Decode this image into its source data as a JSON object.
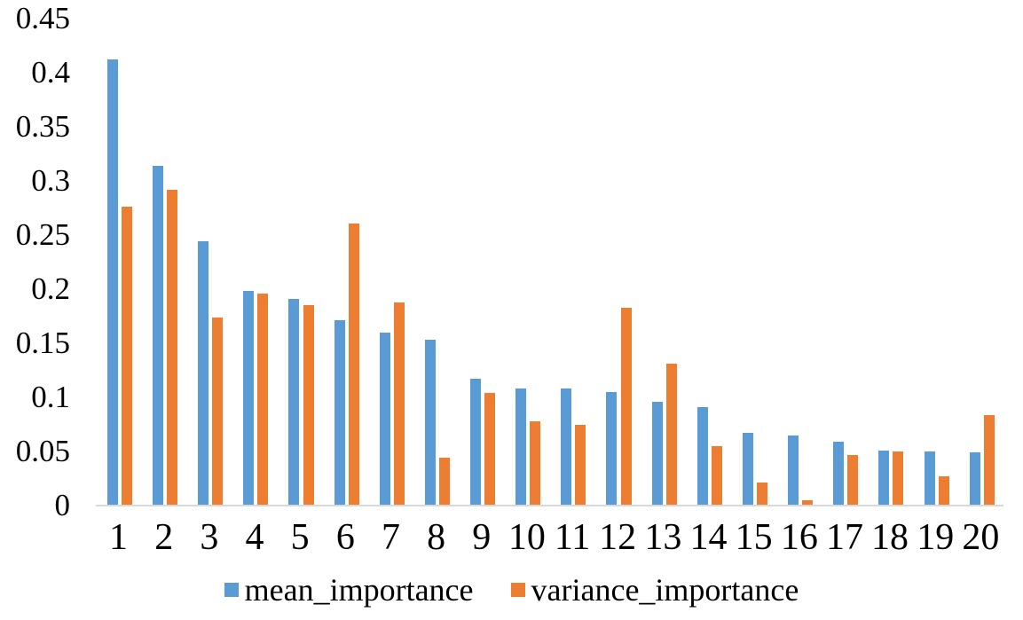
{
  "figure": {
    "background": "#FFFFFF",
    "axis_line_color": "#D9D9D9",
    "text_color": "#000000"
  },
  "chart_data": {
    "type": "bar",
    "title": "",
    "xlabel": "",
    "ylabel": "",
    "grid": false,
    "legend_position": "bottom",
    "ylim": [
      0,
      0.45
    ],
    "categories": [
      "1",
      "2",
      "3",
      "4",
      "5",
      "6",
      "7",
      "8",
      "9",
      "10",
      "11",
      "12",
      "13",
      "14",
      "15",
      "16",
      "17",
      "18",
      "19",
      "20"
    ],
    "yticks": [
      {
        "label": "0.45",
        "value": 0.45
      },
      {
        "label": "0.4",
        "value": 0.4
      },
      {
        "label": "0.35",
        "value": 0.35
      },
      {
        "label": "0.3",
        "value": 0.3
      },
      {
        "label": "0.25",
        "value": 0.25
      },
      {
        "label": "0.2",
        "value": 0.2
      },
      {
        "label": "0.15",
        "value": 0.15
      },
      {
        "label": "0.1",
        "value": 0.1
      },
      {
        "label": "0.05",
        "value": 0.05
      },
      {
        "label": "0",
        "value": 0
      }
    ],
    "series": [
      {
        "name": "mean_importance",
        "color": "#5B9BD5",
        "values": [
          0.412,
          0.314,
          0.244,
          0.198,
          0.191,
          0.171,
          0.16,
          0.153,
          0.117,
          0.108,
          0.108,
          0.105,
          0.096,
          0.091,
          0.067,
          0.065,
          0.059,
          0.051,
          0.05,
          0.049
        ]
      },
      {
        "name": "variance_importance",
        "color": "#ED7D31",
        "values": [
          0.276,
          0.292,
          0.174,
          0.196,
          0.185,
          0.261,
          0.188,
          0.044,
          0.104,
          0.078,
          0.075,
          0.183,
          0.131,
          0.055,
          0.021,
          0.005,
          0.047,
          0.05,
          0.027,
          0.084
        ]
      }
    ]
  }
}
